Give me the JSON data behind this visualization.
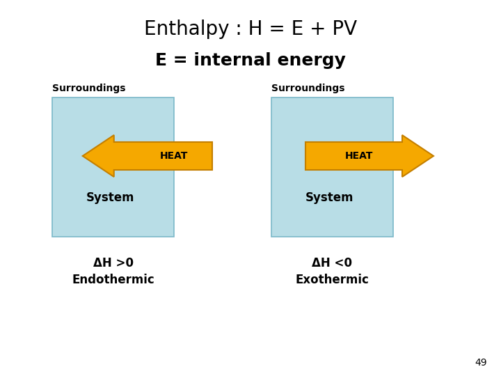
{
  "title": "Enthalpy : H = E + PV",
  "subtitle": "E = internal energy",
  "background_color": "#ffffff",
  "box_color": "#b8dde6",
  "box_edge_color": "#7ab8c8",
  "arrow_color": "#f5a800",
  "arrow_edge_color": "#c47f00",
  "heat_label": "HEAT",
  "surroundings_label": "Surroundings",
  "system_label": "System",
  "left_delta": "ΔH >0",
  "left_type": "Endothermic",
  "right_delta": "ΔH <0",
  "right_type": "Exothermic",
  "page_number": "49",
  "title_fontsize": 20,
  "subtitle_fontsize": 18,
  "surroundings_fontsize": 10,
  "system_fontsize": 12,
  "delta_fontsize": 12,
  "type_fontsize": 12,
  "heat_fontsize": 10
}
